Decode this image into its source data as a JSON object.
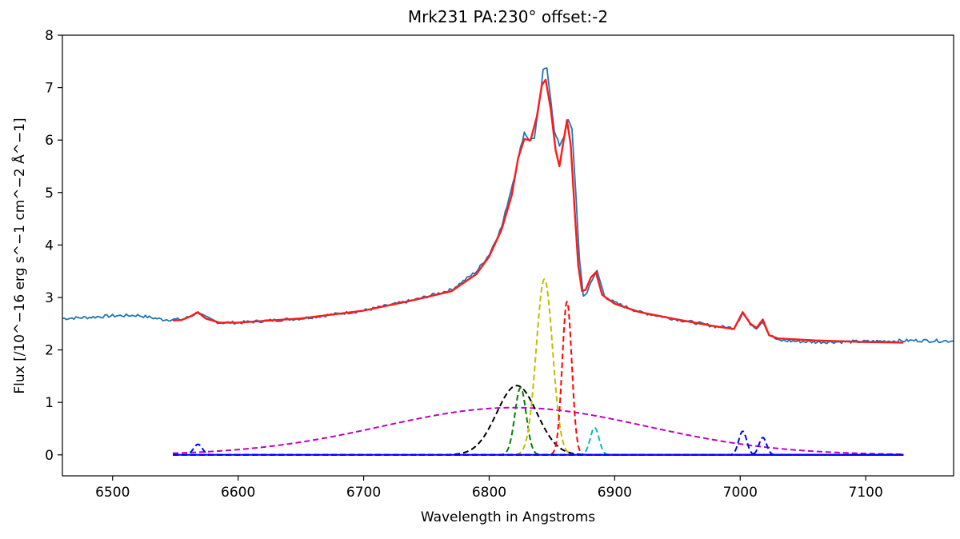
{
  "chart_data": {
    "type": "line",
    "title": "Mrk231 PA:230° offset:-2",
    "xlabel": "Wavelength in Angstroms",
    "ylabel": "Flux  [/10^−16 erg s^−1 cm^−2 Å^−1]",
    "xlim": [
      6460,
      7170
    ],
    "ylim": [
      -0.4,
      8
    ],
    "x_ticks": [
      6500,
      6600,
      6700,
      6800,
      6900,
      7000,
      7100
    ],
    "y_ticks": [
      0,
      1,
      2,
      3,
      4,
      5,
      6,
      7,
      8
    ],
    "grid": false,
    "legend": "none",
    "series": [
      {
        "role": "observed spectrum",
        "color": "#1f77b4",
        "style": "solid",
        "x": [
          6460,
          6480,
          6500,
          6520,
          6540,
          6555,
          6562,
          6568,
          6574,
          6585,
          6600,
          6650,
          6700,
          6740,
          6770,
          6790,
          6800,
          6810,
          6820,
          6825,
          6828,
          6832,
          6836,
          6840,
          6843,
          6846,
          6849,
          6852,
          6856,
          6860,
          6863,
          6866,
          6869,
          6872,
          6875,
          6878,
          6882,
          6886,
          6892,
          6900,
          6920,
          6950,
          6980,
          6995,
          7002,
          7008,
          7013,
          7018,
          7023,
          7030,
          7060,
          7100,
          7140,
          7170
        ],
        "y": [
          2.6,
          2.62,
          2.65,
          2.66,
          2.58,
          2.58,
          2.64,
          2.72,
          2.62,
          2.52,
          2.52,
          2.6,
          2.75,
          2.95,
          3.15,
          3.5,
          3.82,
          4.35,
          5.3,
          5.85,
          6.15,
          6.0,
          6.05,
          6.7,
          7.32,
          7.38,
          6.8,
          6.15,
          5.9,
          6.1,
          6.38,
          6.2,
          5.0,
          3.7,
          3.02,
          3.1,
          3.35,
          3.5,
          3.02,
          2.9,
          2.72,
          2.58,
          2.45,
          2.42,
          2.7,
          2.5,
          2.42,
          2.55,
          2.3,
          2.18,
          2.15,
          2.16,
          2.18,
          2.17
        ]
      },
      {
        "role": "total fit",
        "color": "#ff1a1a",
        "style": "solid",
        "x": [
          6548,
          6555,
          6562,
          6568,
          6574,
          6585,
          6600,
          6650,
          6700,
          6740,
          6770,
          6790,
          6800,
          6810,
          6818,
          6823,
          6828,
          6833,
          6838,
          6842,
          6845,
          6849,
          6853,
          6856,
          6859,
          6862,
          6865,
          6868,
          6871,
          6874,
          6877,
          6881,
          6885,
          6890,
          6900,
          6920,
          6950,
          6980,
          6995,
          7002,
          7008,
          7013,
          7018,
          7023,
          7030,
          7060,
          7100,
          7130
        ],
        "y": [
          2.56,
          2.57,
          2.64,
          2.72,
          2.6,
          2.52,
          2.52,
          2.6,
          2.75,
          2.95,
          3.12,
          3.45,
          3.78,
          4.3,
          4.95,
          5.65,
          6.02,
          6.0,
          6.45,
          7.05,
          7.15,
          6.6,
          5.8,
          5.5,
          5.95,
          6.38,
          5.9,
          4.7,
          3.6,
          3.12,
          3.15,
          3.38,
          3.48,
          3.05,
          2.88,
          2.72,
          2.58,
          2.45,
          2.4,
          2.72,
          2.5,
          2.42,
          2.58,
          2.28,
          2.22,
          2.18,
          2.15,
          2.14
        ]
      },
      {
        "role": "broad component",
        "color": "#c000c0",
        "style": "dashed",
        "gaussian": {
          "amp": 0.9,
          "center": 6820,
          "sigma": 105
        },
        "xrange": [
          6548,
          7130
        ]
      },
      {
        "role": "component",
        "color": "#000000",
        "style": "dashed",
        "gaussian": {
          "amp": 1.32,
          "center": 6822,
          "sigma": 16
        },
        "xrange": [
          6548,
          7130
        ]
      },
      {
        "role": "component",
        "color": "#008000",
        "style": "dashed",
        "gaussian": {
          "amp": 1.28,
          "center": 6825,
          "sigma": 4.5
        },
        "xrange": [
          6548,
          7130
        ]
      },
      {
        "role": "component",
        "color": "#bfbf00",
        "style": "dashed",
        "gaussian": {
          "amp": 3.35,
          "center": 6844,
          "sigma": 6.5
        },
        "xrange": [
          6548,
          7130
        ]
      },
      {
        "role": "component",
        "color": "#ff0000",
        "style": "dashed",
        "gaussian": {
          "amp": 2.92,
          "center": 6862,
          "sigma": 3.8
        },
        "xrange": [
          6548,
          7130
        ]
      },
      {
        "role": "component",
        "color": "#00bfbf",
        "style": "dashed",
        "gaussian": {
          "amp": 0.52,
          "center": 6884,
          "sigma": 3.5
        },
        "xrange": [
          6548,
          7130
        ]
      },
      {
        "role": "component",
        "color": "#0000ff",
        "style": "dashed",
        "gaussian": {
          "amp": 0.2,
          "center": 6568,
          "sigma": 3.5
        },
        "xrange": [
          6548,
          7130
        ]
      },
      {
        "role": "component",
        "color": "#0000ff",
        "style": "dashed",
        "gaussian": {
          "amp": 0.45,
          "center": 7002,
          "sigma": 3.2
        },
        "xrange": [
          6548,
          7130
        ]
      },
      {
        "role": "component",
        "color": "#0000ff",
        "style": "dashed",
        "gaussian": {
          "amp": 0.33,
          "center": 7018,
          "sigma": 3.0
        },
        "xrange": [
          6548,
          7130
        ]
      },
      {
        "role": "baseline",
        "color": "#0000ff",
        "style": "solid",
        "x": [
          6548,
          7130
        ],
        "y": [
          0,
          0
        ]
      }
    ]
  }
}
